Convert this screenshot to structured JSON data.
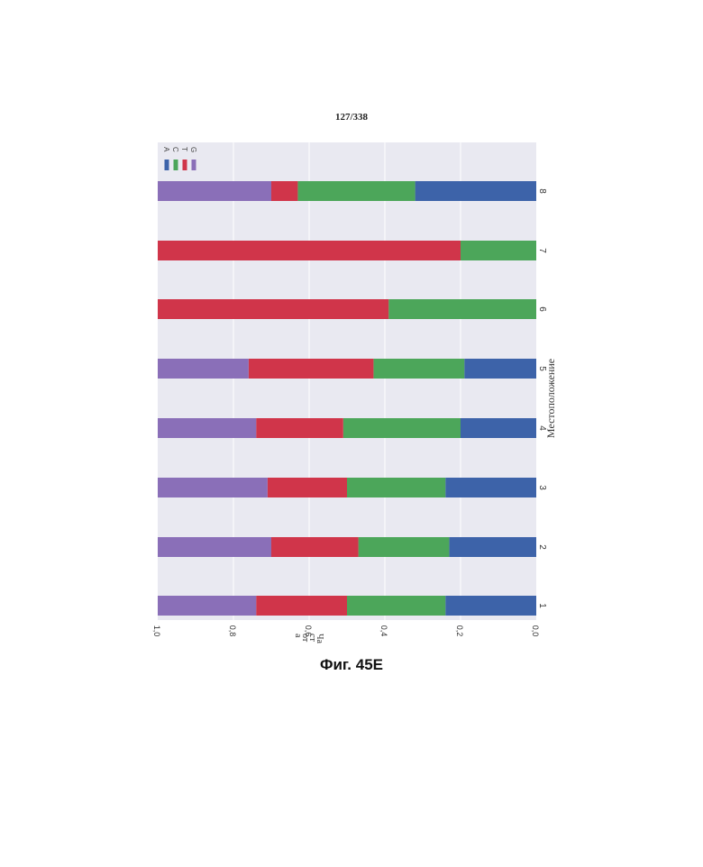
{
  "page": {
    "page_number": "127/338",
    "figure_caption": "Фиг. 45Е"
  },
  "chart_data": {
    "type": "bar",
    "orientation": "stacked horizontal, page rotated 90°",
    "categories": [
      "1",
      "2",
      "3",
      "4",
      "5",
      "6",
      "7",
      "8"
    ],
    "series": [
      {
        "name": "A",
        "color": "#3d63a9",
        "values": [
          0.24,
          0.23,
          0.24,
          0.2,
          0.19,
          0.0,
          0.0,
          0.32
        ]
      },
      {
        "name": "C",
        "color": "#4ca65a",
        "values": [
          0.26,
          0.24,
          0.26,
          0.31,
          0.24,
          0.39,
          0.2,
          0.31
        ]
      },
      {
        "name": "T",
        "color": "#d0354a",
        "values": [
          0.24,
          0.23,
          0.21,
          0.23,
          0.33,
          0.61,
          0.8,
          0.07
        ]
      },
      {
        "name": "G",
        "color": "#8a6fb8",
        "values": [
          0.26,
          0.3,
          0.29,
          0.26,
          0.24,
          0.0,
          0.0,
          0.3
        ]
      }
    ],
    "value_axis": {
      "label": "Частота",
      "label_lines": [
        "Ча",
        "ст",
        "от",
        "а"
      ],
      "range": [
        0,
        1.0
      ],
      "ticks": [
        "0,0",
        "0,2",
        "0,4",
        "0,6",
        "0,8",
        "1,0"
      ]
    },
    "category_axis": {
      "label": "Местоположение"
    },
    "legend": {
      "position": "top-left",
      "entries": [
        "A",
        "C",
        "T",
        "G"
      ]
    },
    "grid": true,
    "background": "#e9e9f1"
  }
}
